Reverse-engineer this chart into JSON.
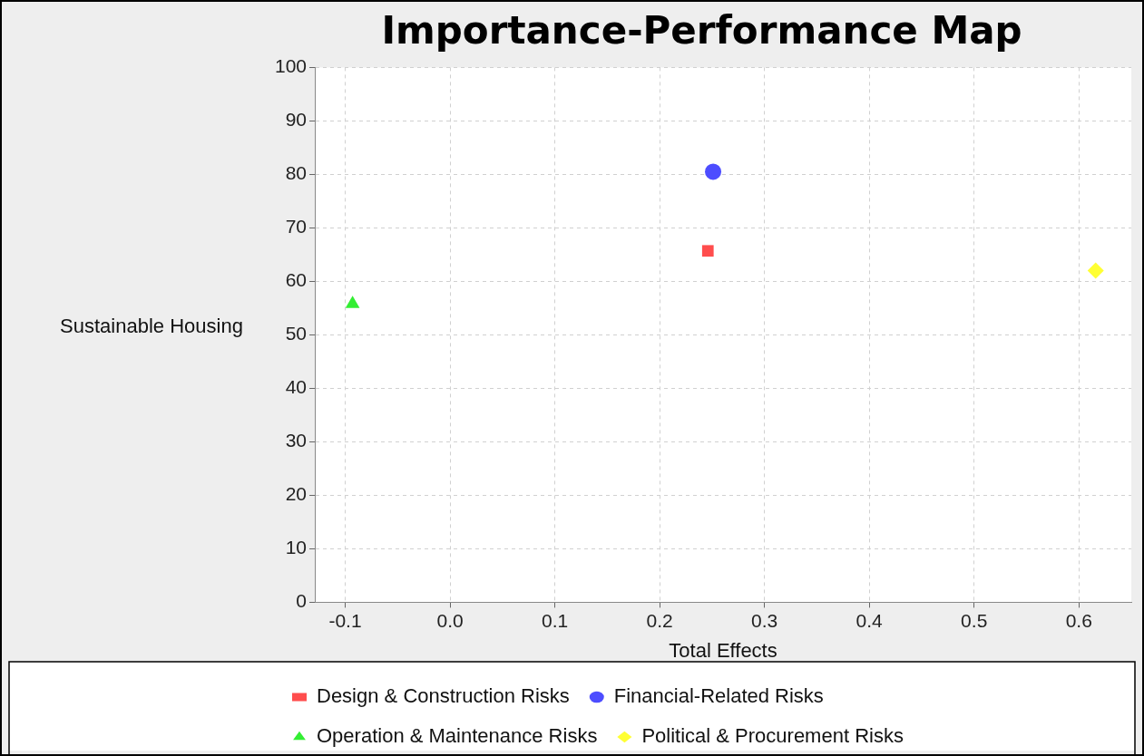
{
  "chart_data": {
    "type": "scatter",
    "title": "Importance-Performance Map",
    "xlabel": "Total Effects",
    "ylabel": "Sustainable Housing",
    "series": [
      {
        "name": "Design & Construction Risks",
        "color": "#ff4d4d",
        "marker": "square",
        "x": [
          0.246
        ],
        "values": [
          65.7
        ]
      },
      {
        "name": "Financial-Related Risks",
        "color": "#4d4dff",
        "marker": "circle",
        "x": [
          0.251
        ],
        "values": [
          80.5
        ]
      },
      {
        "name": "Operation & Maintenance Risks",
        "color": "#33ee33",
        "marker": "triangle",
        "x": [
          -0.093
        ],
        "values": [
          55.8
        ]
      },
      {
        "name": "Political & Procurement Risks",
        "color": "#ffff33",
        "marker": "diamond",
        "x": [
          0.616
        ],
        "values": [
          62.0
        ]
      }
    ],
    "xlim": [
      -0.129,
      0.65
    ],
    "xticks": [
      -0.1,
      {
        "value": 0,
        "label": "0.0"
      },
      0.1,
      0.2,
      0.3,
      0.4,
      0.5,
      0.6
    ],
    "ylim": [
      0,
      100
    ],
    "yticks": [
      0,
      10,
      20,
      30,
      40,
      50,
      60,
      70,
      80,
      90,
      100
    ],
    "grid": true,
    "legend": "bottom"
  }
}
